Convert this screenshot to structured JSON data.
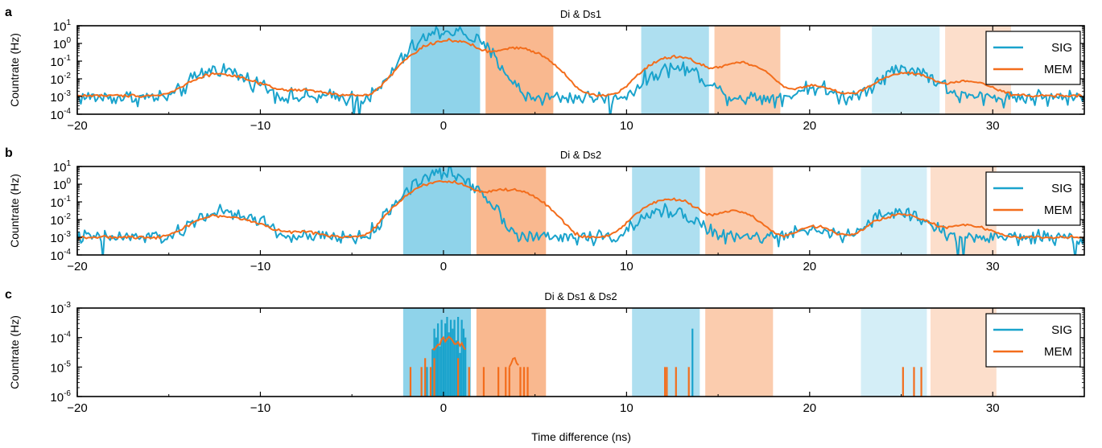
{
  "figure": {
    "xlabel": "Time difference (ns)"
  },
  "colors": {
    "SIG": "#1aa3cc",
    "MEM": "#f36d1c",
    "sig_window_strong": "#8fd3ea",
    "mem_window_strong": "#f9b88f",
    "sig_window_light": "#d4eef7",
    "mem_window_light": "#fcdecb"
  },
  "chart_data": [
    {
      "type": "line",
      "panel_letter": "a",
      "title": "Di & Ds1",
      "ylabel": "Countrate (Hz)",
      "xlim": [
        -20,
        35
      ],
      "ylim_log10": [
        -4,
        1
      ],
      "yscale": "log",
      "xticks": [
        -20,
        -10,
        0,
        10,
        20,
        30
      ],
      "xtick_labels": [
        "−20",
        "−10",
        "0",
        "10",
        "20",
        "30"
      ],
      "ytick_exponents": [
        -4,
        -3,
        -2,
        -1,
        0,
        1
      ],
      "legend_position": "right",
      "legend": [
        "SIG",
        "MEM"
      ],
      "windows": [
        {
          "kind": "sig",
          "level": "strong",
          "x0": -1.8,
          "x1": 2.0
        },
        {
          "kind": "mem",
          "level": "strong",
          "x0": 2.3,
          "x1": 6.0
        },
        {
          "kind": "sig",
          "level": "medium",
          "x0": 10.8,
          "x1": 14.5
        },
        {
          "kind": "mem",
          "level": "medium",
          "x0": 14.8,
          "x1": 18.4
        },
        {
          "kind": "sig",
          "level": "light",
          "x0": 23.4,
          "x1": 27.1
        },
        {
          "kind": "mem",
          "level": "light",
          "x0": 27.4,
          "x1": 31.0
        }
      ],
      "series": [
        {
          "name": "SIG",
          "baseline_log10": -3.05,
          "noise": 0.22,
          "peaks": [
            {
              "x": -12.3,
              "amp": 0.035,
              "sigma": 0.8
            },
            {
              "x": -10.3,
              "amp": 0.004,
              "sigma": 0.6
            },
            {
              "x": 0.3,
              "amp": 5.0,
              "sigma": 0.95
            },
            {
              "x": 12.7,
              "amp": 0.04,
              "sigma": 0.9
            },
            {
              "x": 20.2,
              "amp": 0.0025,
              "sigma": 0.6
            },
            {
              "x": 25.3,
              "amp": 0.035,
              "sigma": 0.9
            }
          ],
          "dropouts": [
            -4.9,
            -4.6,
            9.1
          ]
        },
        {
          "name": "MEM",
          "baseline_log10": -2.95,
          "noise": 0.04,
          "peaks": [
            {
              "x": -12.3,
              "amp": 0.018,
              "sigma": 1.0
            },
            {
              "x": -10.3,
              "amp": 0.003,
              "sigma": 0.8
            },
            {
              "x": -7.8,
              "amp": 0.0012,
              "sigma": 1.0
            },
            {
              "x": 0.3,
              "amp": 1.5,
              "sigma": 1.05
            },
            {
              "x": 4.0,
              "amp": 0.55,
              "sigma": 1.0
            },
            {
              "x": 12.7,
              "amp": 0.17,
              "sigma": 0.95
            },
            {
              "x": 16.2,
              "amp": 0.08,
              "sigma": 0.9
            },
            {
              "x": 20.2,
              "amp": 0.003,
              "sigma": 0.8
            },
            {
              "x": 25.3,
              "amp": 0.02,
              "sigma": 1.0
            },
            {
              "x": 28.7,
              "amp": 0.006,
              "sigma": 0.9
            }
          ],
          "dropouts": []
        }
      ]
    },
    {
      "type": "line",
      "panel_letter": "b",
      "title": "Di & Ds2",
      "ylabel": "Countrate (Hz)",
      "xlim": [
        -20,
        35
      ],
      "ylim_log10": [
        -4,
        1
      ],
      "yscale": "log",
      "xticks": [
        -20,
        -10,
        0,
        10,
        20,
        30
      ],
      "xtick_labels": [
        "−20",
        "−10",
        "0",
        "10",
        "20",
        "30"
      ],
      "ytick_exponents": [
        -4,
        -3,
        -2,
        -1,
        0,
        1
      ],
      "legend_position": "right",
      "legend": [
        "SIG",
        "MEM"
      ],
      "windows": [
        {
          "kind": "sig",
          "level": "strong",
          "x0": -2.2,
          "x1": 1.5
        },
        {
          "kind": "mem",
          "level": "strong",
          "x0": 1.8,
          "x1": 5.6
        },
        {
          "kind": "sig",
          "level": "medium",
          "x0": 10.3,
          "x1": 14.0
        },
        {
          "kind": "mem",
          "level": "medium",
          "x0": 14.3,
          "x1": 18.0
        },
        {
          "kind": "sig",
          "level": "light",
          "x0": 22.8,
          "x1": 26.4
        },
        {
          "kind": "mem",
          "level": "light",
          "x0": 26.6,
          "x1": 30.2
        }
      ],
      "series": [
        {
          "name": "SIG",
          "baseline_log10": -3.0,
          "noise": 0.2,
          "peaks": [
            {
              "x": -12.3,
              "amp": 0.025,
              "sigma": 0.8
            },
            {
              "x": -10.4,
              "amp": 0.01,
              "sigma": 0.6
            },
            {
              "x": 0.0,
              "amp": 4.0,
              "sigma": 0.95
            },
            {
              "x": 12.3,
              "amp": 0.03,
              "sigma": 0.9
            },
            {
              "x": 20.2,
              "amp": 0.003,
              "sigma": 0.5
            },
            {
              "x": 24.9,
              "amp": 0.025,
              "sigma": 0.9
            }
          ],
          "dropouts": [
            -18.6,
            28.1,
            28.4,
            34.5
          ]
        },
        {
          "name": "MEM",
          "baseline_log10": -3.0,
          "noise": 0.04,
          "peaks": [
            {
              "x": -12.3,
              "amp": 0.015,
              "sigma": 1.0
            },
            {
              "x": -10.4,
              "amp": 0.004,
              "sigma": 0.8
            },
            {
              "x": -7.8,
              "amp": 0.001,
              "sigma": 1.0
            },
            {
              "x": 0.0,
              "amp": 1.5,
              "sigma": 1.05
            },
            {
              "x": 3.6,
              "amp": 0.5,
              "sigma": 1.0
            },
            {
              "x": 12.4,
              "amp": 0.14,
              "sigma": 0.95
            },
            {
              "x": 15.9,
              "amp": 0.03,
              "sigma": 0.8
            },
            {
              "x": 20.3,
              "amp": 0.003,
              "sigma": 0.7
            },
            {
              "x": 25.0,
              "amp": 0.018,
              "sigma": 1.0
            },
            {
              "x": 28.6,
              "amp": 0.004,
              "sigma": 0.9
            }
          ],
          "dropouts": []
        }
      ]
    },
    {
      "type": "line",
      "panel_letter": "c",
      "title": "Di & Ds1 & Ds2",
      "ylabel": "Countrate (Hz)",
      "xlabel": "Time difference (ns)",
      "xlim": [
        -20,
        35
      ],
      "ylim_log10": [
        -6,
        -3
      ],
      "yscale": "log",
      "xticks": [
        -20,
        -10,
        0,
        10,
        20,
        30
      ],
      "xtick_labels": [
        "−20",
        "−10",
        "0",
        "10",
        "20",
        "30"
      ],
      "ytick_exponents": [
        -6,
        -5,
        -4,
        -3
      ],
      "legend_position": "right",
      "legend": [
        "SIG",
        "MEM"
      ],
      "windows": [
        {
          "kind": "sig",
          "level": "strong",
          "x0": -2.2,
          "x1": 1.5
        },
        {
          "kind": "mem",
          "level": "strong",
          "x0": 1.8,
          "x1": 5.6
        },
        {
          "kind": "sig",
          "level": "medium",
          "x0": 10.3,
          "x1": 14.0
        },
        {
          "kind": "mem",
          "level": "medium",
          "x0": 14.3,
          "x1": 18.0
        },
        {
          "kind": "sig",
          "level": "light",
          "x0": 22.8,
          "x1": 26.4
        },
        {
          "kind": "mem",
          "level": "light",
          "x0": 26.6,
          "x1": 30.2
        }
      ],
      "series": [
        {
          "name": "SIG",
          "spikes": [
            {
              "x": -0.9,
              "v": 1e-05
            },
            {
              "x": -0.6,
              "v": 4e-05
            },
            {
              "x": -0.5,
              "v": 0.0002
            },
            {
              "x": -0.4,
              "v": 0.0001
            },
            {
              "x": -0.3,
              "v": 0.0003
            },
            {
              "x": -0.2,
              "v": 5e-05
            },
            {
              "x": -0.1,
              "v": 0.0004
            },
            {
              "x": 0.0,
              "v": 0.0001
            },
            {
              "x": 0.1,
              "v": 0.0003
            },
            {
              "x": 0.2,
              "v": 0.0005
            },
            {
              "x": 0.3,
              "v": 0.00015
            },
            {
              "x": 0.4,
              "v": 0.0004
            },
            {
              "x": 0.5,
              "v": 0.0002
            },
            {
              "x": 0.6,
              "v": 0.0004
            },
            {
              "x": 0.7,
              "v": 8e-05
            },
            {
              "x": 0.8,
              "v": 0.0005
            },
            {
              "x": 0.9,
              "v": 3e-05
            },
            {
              "x": 1.0,
              "v": 0.0004
            },
            {
              "x": 1.1,
              "v": 0.0002
            },
            {
              "x": 1.2,
              "v": 0.0001
            },
            {
              "x": 13.6,
              "v": 0.0002
            }
          ]
        },
        {
          "name": "MEM",
          "spikes": [
            {
              "x": -1.8,
              "v": 1e-05
            },
            {
              "x": -1.2,
              "v": 1e-05
            },
            {
              "x": -1.0,
              "v": 2e-05
            },
            {
              "x": -0.7,
              "v": 1e-05
            },
            {
              "x": -0.5,
              "v": 2e-05
            },
            {
              "x": 0.8,
              "v": 2e-05
            },
            {
              "x": 1.4,
              "v": 1e-05
            },
            {
              "x": 2.2,
              "v": 1e-05
            },
            {
              "x": 3.0,
              "v": 1e-05
            },
            {
              "x": 3.4,
              "v": 1e-05
            },
            {
              "x": 3.6,
              "v": 1e-05
            },
            {
              "x": 4.2,
              "v": 1e-05
            },
            {
              "x": 4.4,
              "v": 1e-05
            },
            {
              "x": 4.6,
              "v": 1e-05
            },
            {
              "x": 12.1,
              "v": 1e-05
            },
            {
              "x": 12.2,
              "v": 1e-05
            },
            {
              "x": 12.7,
              "v": 1e-05
            },
            {
              "x": 13.4,
              "v": 1e-05
            },
            {
              "x": 25.1,
              "v": 1e-05
            },
            {
              "x": 25.7,
              "v": 1e-05
            },
            {
              "x": 26.1,
              "v": 1e-05
            }
          ],
          "bumps": [
            {
              "x0": -0.6,
              "x1": 1.2,
              "v": 9e-05
            },
            {
              "x0": 3.6,
              "x1": 4.1,
              "v": 2.2e-05
            }
          ]
        }
      ]
    }
  ]
}
